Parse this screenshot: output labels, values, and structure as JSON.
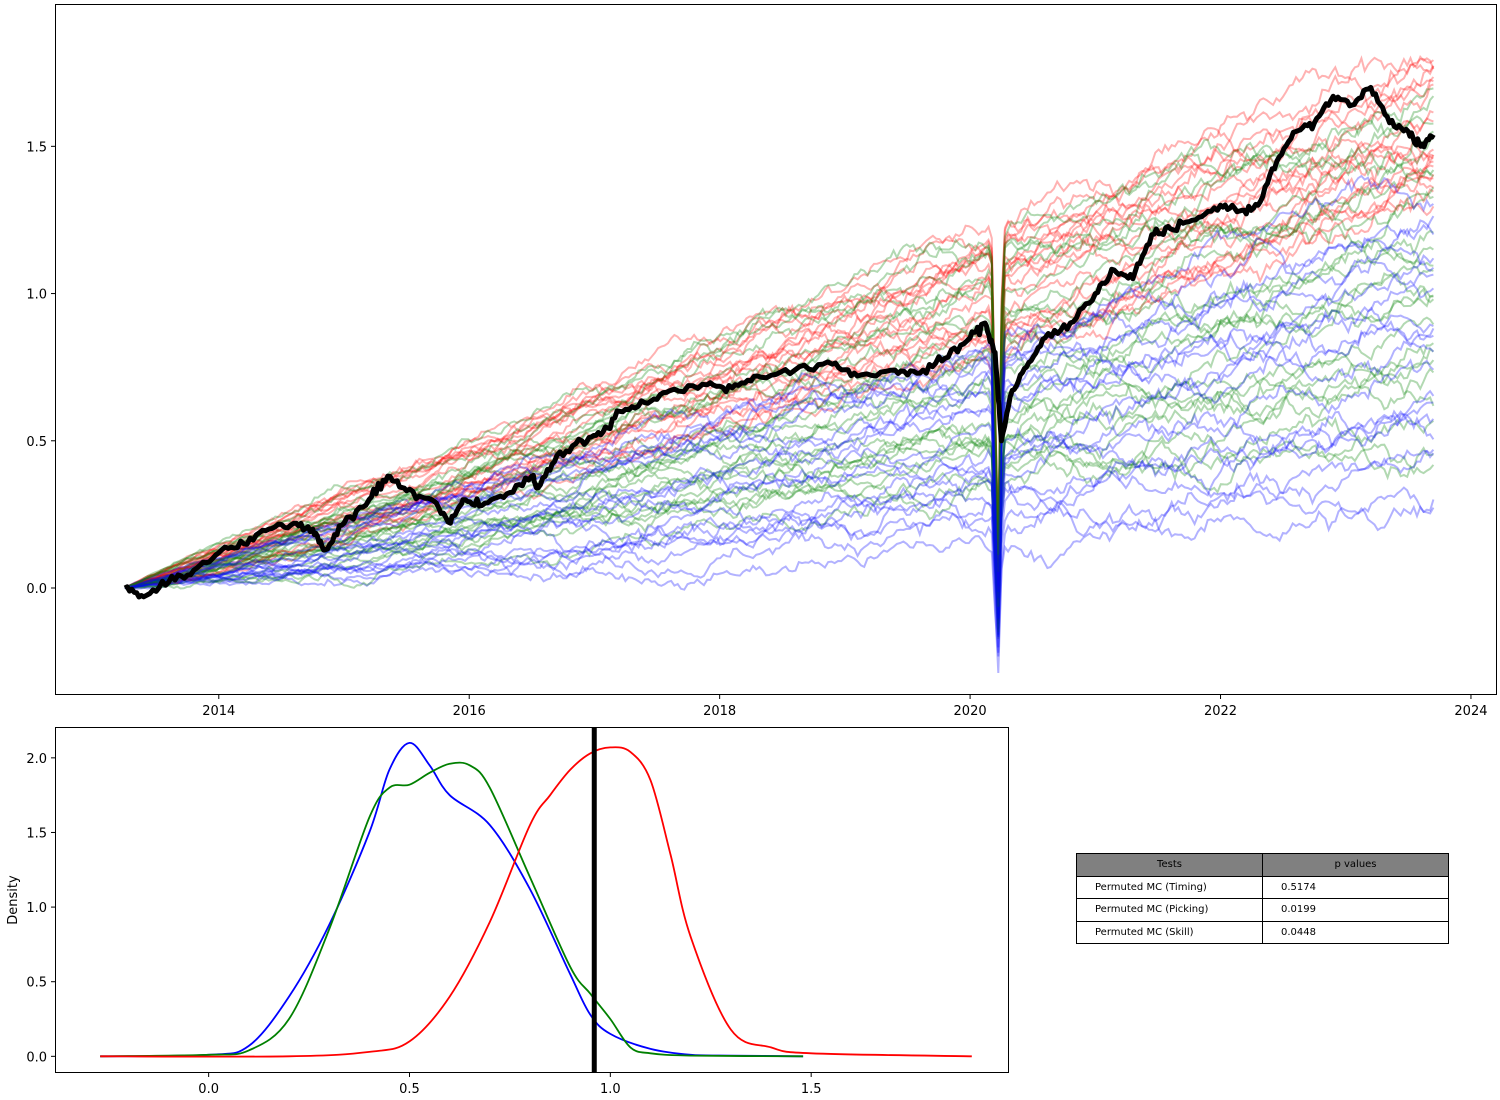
{
  "chart_data": [
    {
      "type": "line",
      "title": "",
      "xlabel": "",
      "ylabel": "",
      "x_ticks": [
        "2014",
        "2016",
        "2018",
        "2020",
        "2022",
        "2024"
      ],
      "y_ticks": [
        "0.0",
        "0.5",
        "1.0",
        "1.5"
      ],
      "xlim": [
        2012.7,
        2024.2
      ],
      "ylim": [
        -0.36,
        1.98
      ],
      "grid": false,
      "legend": "none",
      "x_start": 2013.25,
      "x_end": 2023.7,
      "actual_series": {
        "color": "#000000",
        "points": [
          [
            2013.25,
            0.0
          ],
          [
            2013.4,
            -0.03
          ],
          [
            2013.6,
            0.02
          ],
          [
            2013.8,
            0.06
          ],
          [
            2014.0,
            0.12
          ],
          [
            2014.2,
            0.15
          ],
          [
            2014.4,
            0.2
          ],
          [
            2014.6,
            0.22
          ],
          [
            2014.75,
            0.2
          ],
          [
            2014.85,
            0.13
          ],
          [
            2015.0,
            0.22
          ],
          [
            2015.2,
            0.3
          ],
          [
            2015.35,
            0.38
          ],
          [
            2015.5,
            0.33
          ],
          [
            2015.7,
            0.3
          ],
          [
            2015.85,
            0.22
          ],
          [
            2015.95,
            0.3
          ],
          [
            2016.1,
            0.28
          ],
          [
            2016.3,
            0.32
          ],
          [
            2016.5,
            0.38
          ],
          [
            2016.55,
            0.34
          ],
          [
            2016.7,
            0.45
          ],
          [
            2016.9,
            0.5
          ],
          [
            2017.05,
            0.52
          ],
          [
            2017.2,
            0.6
          ],
          [
            2017.4,
            0.63
          ],
          [
            2017.6,
            0.67
          ],
          [
            2017.9,
            0.69
          ],
          [
            2018.1,
            0.68
          ],
          [
            2018.3,
            0.72
          ],
          [
            2018.6,
            0.74
          ],
          [
            2018.9,
            0.76
          ],
          [
            2019.1,
            0.72
          ],
          [
            2019.4,
            0.74
          ],
          [
            2019.6,
            0.73
          ],
          [
            2019.8,
            0.78
          ],
          [
            2020.0,
            0.85
          ],
          [
            2020.12,
            0.9
          ],
          [
            2020.2,
            0.8
          ],
          [
            2020.25,
            0.5
          ],
          [
            2020.32,
            0.65
          ],
          [
            2020.45,
            0.75
          ],
          [
            2020.6,
            0.85
          ],
          [
            2020.8,
            0.9
          ],
          [
            2021.0,
            1.0
          ],
          [
            2021.15,
            1.08
          ],
          [
            2021.3,
            1.05
          ],
          [
            2021.45,
            1.2
          ],
          [
            2021.6,
            1.22
          ],
          [
            2021.8,
            1.25
          ],
          [
            2022.0,
            1.3
          ],
          [
            2022.15,
            1.28
          ],
          [
            2022.3,
            1.3
          ],
          [
            2022.45,
            1.45
          ],
          [
            2022.6,
            1.55
          ],
          [
            2022.75,
            1.58
          ],
          [
            2022.9,
            1.67
          ],
          [
            2023.05,
            1.64
          ],
          [
            2023.2,
            1.7
          ],
          [
            2023.35,
            1.58
          ],
          [
            2023.5,
            1.55
          ],
          [
            2023.6,
            1.5
          ],
          [
            2023.7,
            1.54
          ]
        ]
      },
      "simulated_groups": [
        {
          "color": "#ff0000",
          "count": 20,
          "end_min": 1.26,
          "end_max": 1.88
        },
        {
          "color": "#008000",
          "count": 25,
          "end_min": 0.48,
          "end_max": 1.76
        },
        {
          "color": "#0000ff",
          "count": 20,
          "end_min": 0.26,
          "end_max": 1.36
        }
      ]
    },
    {
      "type": "line",
      "title": "",
      "xlabel": "",
      "ylabel": "Density",
      "x_ticks": [
        "0.0",
        "0.5",
        "1.0",
        "1.5"
      ],
      "y_ticks": [
        "0.0",
        "0.5",
        "1.0",
        "1.5",
        "2.0"
      ],
      "xlim": [
        -0.38,
        1.99
      ],
      "ylim": [
        -0.105,
        2.2
      ],
      "grid": false,
      "legend": "none",
      "vertical_line": {
        "x": 0.96,
        "color": "#000000"
      },
      "series": [
        {
          "color": "#0000ff",
          "x": [
            -0.27,
            0.0,
            0.1,
            0.2,
            0.3,
            0.4,
            0.45,
            0.5,
            0.55,
            0.6,
            0.7,
            0.8,
            0.9,
            0.95,
            1.0,
            1.1,
            1.2,
            1.3,
            1.48
          ],
          "y": [
            0.0,
            0.01,
            0.07,
            0.4,
            0.88,
            1.5,
            1.92,
            2.1,
            1.95,
            1.75,
            1.55,
            1.12,
            0.55,
            0.28,
            0.15,
            0.05,
            0.01,
            0.005,
            0.0
          ]
        },
        {
          "color": "#008000",
          "x": [
            -0.27,
            0.0,
            0.1,
            0.2,
            0.3,
            0.4,
            0.45,
            0.5,
            0.55,
            0.6,
            0.65,
            0.7,
            0.8,
            0.9,
            0.95,
            1.0,
            1.05,
            1.1,
            1.2,
            1.48
          ],
          "y": [
            0.0,
            0.01,
            0.04,
            0.25,
            0.85,
            1.6,
            1.8,
            1.82,
            1.9,
            1.96,
            1.95,
            1.8,
            1.2,
            0.6,
            0.42,
            0.25,
            0.06,
            0.02,
            0.005,
            0.0
          ]
        },
        {
          "color": "#ff0000",
          "x": [
            -0.27,
            0.2,
            0.4,
            0.5,
            0.6,
            0.7,
            0.8,
            0.85,
            0.9,
            0.95,
            1.0,
            1.05,
            1.1,
            1.15,
            1.2,
            1.3,
            1.4,
            1.5,
            1.9
          ],
          "y": [
            0.0,
            0.0,
            0.03,
            0.1,
            0.4,
            0.9,
            1.55,
            1.75,
            1.92,
            2.03,
            2.07,
            2.04,
            1.85,
            1.35,
            0.8,
            0.18,
            0.06,
            0.02,
            0.0
          ]
        }
      ]
    }
  ],
  "table": {
    "headers": [
      "Tests",
      "p values"
    ],
    "rows": [
      [
        "Permuted MC (Timing)",
        "0.5174"
      ],
      [
        "Permuted MC (Picking)",
        "0.0199"
      ],
      [
        "Permuted MC (Skill)",
        "0.0448"
      ]
    ]
  }
}
